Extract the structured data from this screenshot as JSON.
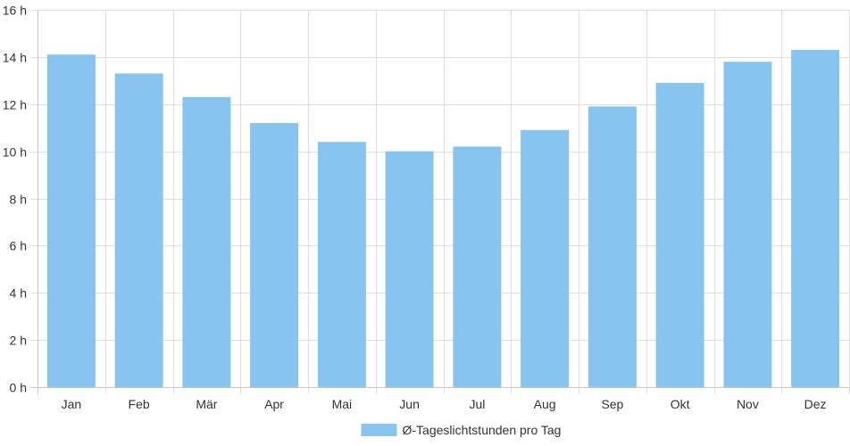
{
  "chart_data": {
    "type": "bar",
    "categories": [
      "Jan",
      "Feb",
      "Mär",
      "Apr",
      "Mai",
      "Jun",
      "Jul",
      "Aug",
      "Sep",
      "Okt",
      "Nov",
      "Dez"
    ],
    "series": [
      {
        "name": "Ø-Tageslichtstunden pro Tag",
        "color": "#88c4f0",
        "values": [
          14.1,
          13.3,
          12.3,
          11.2,
          10.4,
          10.0,
          10.2,
          10.9,
          11.9,
          12.9,
          13.8,
          14.3
        ]
      }
    ],
    "title": "",
    "xlabel": "",
    "ylabel": "",
    "ylim": [
      0,
      16
    ],
    "y_ticks": [
      "0 h",
      "2 h",
      "4 h",
      "6 h",
      "8 h",
      "10 h",
      "12 h",
      "14 h",
      "16 h"
    ],
    "grid": true,
    "legend_position": "bottom",
    "colors": {
      "grid": "#e0e0e0",
      "axis": "#c8c8c8",
      "text": "#333333"
    }
  }
}
